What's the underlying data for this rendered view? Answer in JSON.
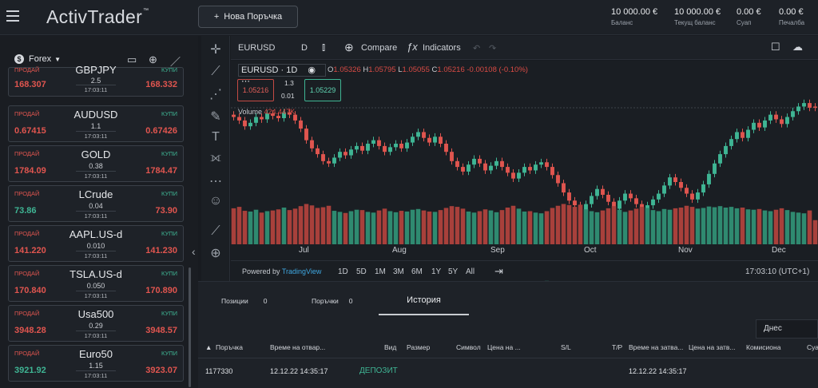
{
  "app": {
    "logo": "ActivTrader",
    "logo_mark": "™"
  },
  "header": {
    "new_order": "Нова Поръчка",
    "stats": [
      {
        "value": "10 000.00 €",
        "label": "Баланс"
      },
      {
        "value": "10 000.00 €",
        "label": "Текущ баланс"
      },
      {
        "value": "0.00 €",
        "label": "Суап"
      },
      {
        "value": "0.00 €",
        "label": "Печалба"
      }
    ]
  },
  "watchlist": {
    "category": "Forex",
    "items": [
      {
        "symbol": "GBPJPY",
        "sell_label": "ПРОДАЙ",
        "buy_label": "КУПИ",
        "sell": "168.307",
        "buy": "168.332",
        "spread": "2.5",
        "time": "17:03:11"
      },
      {
        "symbol": "AUDUSD",
        "sell_label": "ПРОДАЙ",
        "buy_label": "КУПИ",
        "sell": "0.67415",
        "buy": "0.67426",
        "spread": "1.1",
        "time": "17:03:11"
      },
      {
        "symbol": "GOLD",
        "sell_label": "ПРОДАЙ",
        "buy_label": "КУПИ",
        "sell": "1784.09",
        "buy": "1784.47",
        "spread": "0.38",
        "time": "17:03:11"
      },
      {
        "symbol": "LCrude",
        "sell_label": "ПРОДАЙ",
        "buy_label": "КУПИ",
        "sell": "73.86",
        "buy": "73.90",
        "spread": "0.04",
        "time": "17:03:11",
        "sell_green": true
      },
      {
        "symbol": "AAPL.US-d",
        "sell_label": "ПРОДАЙ",
        "buy_label": "КУПИ",
        "sell": "141.220",
        "buy": "141.230",
        "spread": "0.010",
        "time": "17:03:11"
      },
      {
        "symbol": "TSLA.US-d",
        "sell_label": "ПРОДАЙ",
        "buy_label": "КУПИ",
        "sell": "170.840",
        "buy": "170.890",
        "spread": "0.050",
        "time": "17:03:11"
      },
      {
        "symbol": "Usa500",
        "sell_label": "ПРОДАЙ",
        "buy_label": "КУПИ",
        "sell": "3948.28",
        "buy": "3948.57",
        "spread": "0.29",
        "time": "17:03:11"
      },
      {
        "symbol": "Euro50",
        "sell_label": "ПРОДАЙ",
        "buy_label": "КУПИ",
        "sell": "3921.92",
        "buy": "3923.07",
        "spread": "1.15",
        "time": "17:03:11",
        "sell_green": true
      }
    ]
  },
  "chart": {
    "symbol": "EURUSD",
    "interval": "D",
    "compare": "Compare",
    "indicators": "Indicators",
    "legend_symbol": "EURUSD · 1D",
    "ohlc": {
      "o_label": "O",
      "o": "1.05326",
      "h_label": "H",
      "h": "1.05795",
      "l_label": "L",
      "l": "1.05055",
      "c_label": "C",
      "c": "1.05216",
      "change": "-0.00108 (-0.10%)"
    },
    "sell_price": "1.05216",
    "buy_price": "1.05229",
    "spread": "1.3",
    "lot": "0.01",
    "volume_label": "Volume",
    "volume_value": "424.447K",
    "months": [
      "Jul",
      "Aug",
      "Sep",
      "Oct",
      "Nov",
      "Dec"
    ],
    "powered": "Powered by",
    "tradingview": "TradingView",
    "ranges": [
      "1D",
      "5D",
      "1M",
      "3M",
      "6M",
      "1Y",
      "5Y",
      "All"
    ],
    "clock": "17:03:10 (UTC+1)"
  },
  "orders": {
    "tabs": [
      {
        "label": "Позиции",
        "count": "0"
      },
      {
        "label": "Поръчки",
        "count": "0"
      }
    ],
    "active_tab": "История",
    "date_filter": "Днес",
    "columns": [
      "Поръчка",
      "Време на отвар...",
      "Вид",
      "Размер",
      "Символ",
      "Цена на ...",
      "S/L",
      "T/P",
      "Време на затва...",
      "Цена на затв...",
      "Комисиона",
      "Суа"
    ],
    "rows": [
      {
        "order": "1177330",
        "open_time": "12.12.22 14:35:17",
        "type": "ДЕПОЗИТ",
        "close_time": "12.12.22 14:35:17"
      }
    ]
  },
  "chart_data": {
    "type": "candlestick",
    "x_labels": [
      "Jul",
      "Aug",
      "Sep",
      "Oct",
      "Nov",
      "Dec"
    ],
    "last": {
      "open": 1.05326,
      "high": 1.05795,
      "low": 1.05055,
      "close": 1.05216
    },
    "candles": [
      {
        "o": 1.046,
        "c": 1.044
      },
      {
        "o": 1.044,
        "c": 1.041
      },
      {
        "o": 1.041,
        "c": 1.036
      },
      {
        "o": 1.036,
        "c": 1.039
      },
      {
        "o": 1.039,
        "c": 1.044
      },
      {
        "o": 1.044,
        "c": 1.042
      },
      {
        "o": 1.042,
        "c": 1.047
      },
      {
        "o": 1.047,
        "c": 1.045
      },
      {
        "o": 1.045,
        "c": 1.043
      },
      {
        "o": 1.043,
        "c": 1.048
      },
      {
        "o": 1.048,
        "c": 1.046
      },
      {
        "o": 1.046,
        "c": 1.041
      },
      {
        "o": 1.041,
        "c": 1.034
      },
      {
        "o": 1.034,
        "c": 1.024
      },
      {
        "o": 1.024,
        "c": 1.017
      },
      {
        "o": 1.017,
        "c": 1.012
      },
      {
        "o": 1.012,
        "c": 1.006
      },
      {
        "o": 1.006,
        "c": 1.004
      },
      {
        "o": 1.004,
        "c": 1.009
      },
      {
        "o": 1.009,
        "c": 1.014
      },
      {
        "o": 1.014,
        "c": 1.011
      },
      {
        "o": 1.011,
        "c": 1.016
      },
      {
        "o": 1.016,
        "c": 1.019
      },
      {
        "o": 1.019,
        "c": 1.015
      },
      {
        "o": 1.015,
        "c": 1.021
      },
      {
        "o": 1.021,
        "c": 1.024
      },
      {
        "o": 1.024,
        "c": 1.019
      },
      {
        "o": 1.019,
        "c": 1.014
      },
      {
        "o": 1.014,
        "c": 1.018
      },
      {
        "o": 1.018,
        "c": 1.021
      },
      {
        "o": 1.021,
        "c": 1.017
      },
      {
        "o": 1.017,
        "c": 1.022
      },
      {
        "o": 1.022,
        "c": 1.027
      },
      {
        "o": 1.027,
        "c": 1.031
      },
      {
        "o": 1.031,
        "c": 1.026
      },
      {
        "o": 1.026,
        "c": 1.022
      },
      {
        "o": 1.022,
        "c": 1.027
      },
      {
        "o": 1.027,
        "c": 1.021
      },
      {
        "o": 1.021,
        "c": 1.014
      },
      {
        "o": 1.014,
        "c": 1.006
      },
      {
        "o": 1.006,
        "c": 1.001
      },
      {
        "o": 1.001,
        "c": 0.997
      },
      {
        "o": 0.997,
        "c": 1.003
      },
      {
        "o": 1.003,
        "c": 1.008
      },
      {
        "o": 1.008,
        "c": 1.004
      },
      {
        "o": 1.004,
        "c": 0.998
      },
      {
        "o": 0.998,
        "c": 1.002
      },
      {
        "o": 1.002,
        "c": 1.006
      },
      {
        "o": 1.006,
        "c": 1.001
      },
      {
        "o": 1.001,
        "c": 0.996
      },
      {
        "o": 0.996,
        "c": 0.991
      },
      {
        "o": 0.991,
        "c": 0.996
      },
      {
        "o": 0.996,
        "c": 1.001
      },
      {
        "o": 1.001,
        "c": 0.998
      },
      {
        "o": 0.998,
        "c": 1.003
      },
      {
        "o": 1.003,
        "c": 1.005
      },
      {
        "o": 1.005,
        "c": 1.001
      },
      {
        "o": 1.001,
        "c": 0.994
      },
      {
        "o": 0.994,
        "c": 0.987
      },
      {
        "o": 0.987,
        "c": 0.979
      },
      {
        "o": 0.979,
        "c": 0.972
      },
      {
        "o": 0.972,
        "c": 0.968
      },
      {
        "o": 0.968,
        "c": 0.962
      },
      {
        "o": 0.962,
        "c": 0.969
      },
      {
        "o": 0.969,
        "c": 0.976
      },
      {
        "o": 0.976,
        "c": 0.982
      },
      {
        "o": 0.982,
        "c": 0.977
      },
      {
        "o": 0.977,
        "c": 0.971
      },
      {
        "o": 0.971,
        "c": 0.965
      },
      {
        "o": 0.965,
        "c": 0.972
      },
      {
        "o": 0.972,
        "c": 0.978
      },
      {
        "o": 0.978,
        "c": 0.974
      },
      {
        "o": 0.974,
        "c": 0.969
      },
      {
        "o": 0.969,
        "c": 0.964
      },
      {
        "o": 0.964,
        "c": 0.968
      },
      {
        "o": 0.968,
        "c": 0.973
      },
      {
        "o": 0.973,
        "c": 0.978
      },
      {
        "o": 0.978,
        "c": 0.985
      },
      {
        "o": 0.985,
        "c": 0.992
      },
      {
        "o": 0.992,
        "c": 0.988
      },
      {
        "o": 0.988,
        "c": 0.983
      },
      {
        "o": 0.983,
        "c": 0.978
      },
      {
        "o": 0.978,
        "c": 0.973
      },
      {
        "o": 0.973,
        "c": 0.979
      },
      {
        "o": 0.979,
        "c": 0.986
      },
      {
        "o": 0.986,
        "c": 0.995
      },
      {
        "o": 0.995,
        "c": 1.004
      },
      {
        "o": 1.004,
        "c": 1.012
      },
      {
        "o": 1.012,
        "c": 1.019
      },
      {
        "o": 1.019,
        "c": 1.025
      },
      {
        "o": 1.025,
        "c": 1.031
      },
      {
        "o": 1.031,
        "c": 1.026
      },
      {
        "o": 1.026,
        "c": 1.033
      },
      {
        "o": 1.033,
        "c": 1.039
      },
      {
        "o": 1.039,
        "c": 1.035
      },
      {
        "o": 1.035,
        "c": 1.041
      },
      {
        "o": 1.041,
        "c": 1.046
      },
      {
        "o": 1.046,
        "c": 1.042
      },
      {
        "o": 1.042,
        "c": 1.038
      },
      {
        "o": 1.038,
        "c": 1.044
      },
      {
        "o": 1.044,
        "c": 1.049
      },
      {
        "o": 1.049,
        "c": 1.053
      },
      {
        "o": 1.053,
        "c": 1.056
      },
      {
        "o": 1.056,
        "c": 1.052
      },
      {
        "o": 1.053,
        "c": 1.052
      }
    ],
    "volumes": [
      0.78,
      0.82,
      0.71,
      0.69,
      0.74,
      0.66,
      0.7,
      0.72,
      0.75,
      0.8,
      0.73,
      0.77,
      0.84,
      0.9,
      0.86,
      0.79,
      0.81,
      0.85,
      0.71,
      0.68,
      0.65,
      0.7,
      0.74,
      0.73,
      0.68,
      0.66,
      0.72,
      0.77,
      0.7,
      0.67,
      0.71,
      0.69,
      0.74,
      0.76,
      0.72,
      0.69,
      0.68,
      0.73,
      0.79,
      0.84,
      0.82,
      0.77,
      0.69,
      0.66,
      0.7,
      0.75,
      0.72,
      0.67,
      0.73,
      0.8,
      0.85,
      0.77,
      0.69,
      0.7,
      0.66,
      0.64,
      0.7,
      0.79,
      0.85,
      0.9,
      0.87,
      0.82,
      0.88,
      0.75,
      0.7,
      0.67,
      0.72,
      0.78,
      0.84,
      0.74,
      0.68,
      0.72,
      0.77,
      0.82,
      0.79,
      0.73,
      0.7,
      0.76,
      0.74,
      0.78,
      0.8,
      0.85,
      0.82,
      0.77,
      0.79,
      0.83,
      0.81,
      0.84,
      0.8,
      0.82,
      0.78,
      0.8,
      0.75,
      0.74,
      0.76,
      0.72,
      0.7,
      0.74,
      0.78,
      0.73,
      0.68,
      0.66,
      0.64,
      0.72,
      0.45
    ]
  }
}
